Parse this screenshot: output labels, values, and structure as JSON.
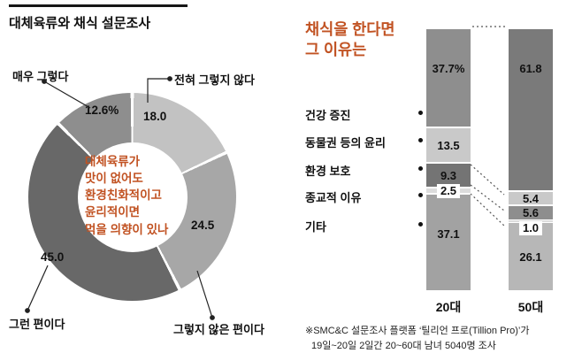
{
  "page": {
    "background": "#ffffff",
    "accent_color": "#c15222",
    "text_color": "#111111"
  },
  "left_chart": {
    "title": "대체육류와 채식 설문조사",
    "center_lines": [
      "대체육류가",
      "맛이 없어도",
      "환경친화적이고",
      "윤리적이면",
      "먹을 의향이 있나"
    ],
    "callouts": [
      {
        "label": "매우 그렇다",
        "value": "12.6%"
      },
      {
        "label": "전혀 그렇지 않다",
        "value": "18.0"
      },
      {
        "label": "그런 편이다",
        "value": "45.0"
      },
      {
        "label": "그렇지 않은 편이다",
        "value": "24.5"
      }
    ]
  },
  "right_chart": {
    "title_lines": [
      "채식을 한다면",
      "그 이유는"
    ],
    "categories": [
      "건강 증진",
      "동물권 등의 윤리",
      "환경 보호",
      "종교적 이유",
      "기타"
    ]
  },
  "footnote_lines": [
    "※SMC&C 설문조사 플랫폼 ‘틸리언 프로(Tillion Pro)’가",
    "19일~20일 2일간 20~60대 남녀 5040명 조사"
  ],
  "chart_data": [
    {
      "type": "pie",
      "donut": true,
      "title": "대체육류와 채식 설문조사",
      "question": "대체육류가 맛이 없어도 환경친화적이고 윤리적이면 먹을 의향이 있나",
      "labels": [
        "전혀 그렇지 않다",
        "그렇지 않은 편이다",
        "그런 편이다",
        "매우 그렇다"
      ],
      "values": [
        18.0,
        24.5,
        45.0,
        12.6
      ],
      "colors": [
        "#c2c2c2",
        "#a7a7a7",
        "#686868",
        "#8e8e8e"
      ],
      "start_angle_deg": 0,
      "direction": "clockwise",
      "unit": "%"
    },
    {
      "type": "bar",
      "stacked": true,
      "percent": true,
      "title": "채식을 한다면 그 이유는",
      "categories": [
        "건강 증진",
        "동물권 등의 윤리",
        "환경 보호",
        "종교적 이유",
        "기타"
      ],
      "series": [
        {
          "name": "20대",
          "values": [
            37.7,
            13.5,
            9.3,
            2.5,
            37.1
          ],
          "value_labels": [
            "37.7%",
            "13.5",
            "9.3",
            "2.5",
            "37.1"
          ],
          "colors": [
            "#8e8e8e",
            "#c9c9c9",
            "#747474",
            "#dcdcdc",
            "#a2a2a2"
          ]
        },
        {
          "name": "50대",
          "values": [
            61.8,
            5.4,
            5.6,
            1.0,
            26.1
          ],
          "value_labels": [
            "61.8",
            "5.4",
            "5.6",
            "1.0",
            "26.1"
          ],
          "colors": [
            "#7a7a7a",
            "#c9c9c9",
            "#8e8e8e",
            "#dcdcdc",
            "#b7b7b7"
          ]
        }
      ],
      "unit": "%"
    }
  ]
}
